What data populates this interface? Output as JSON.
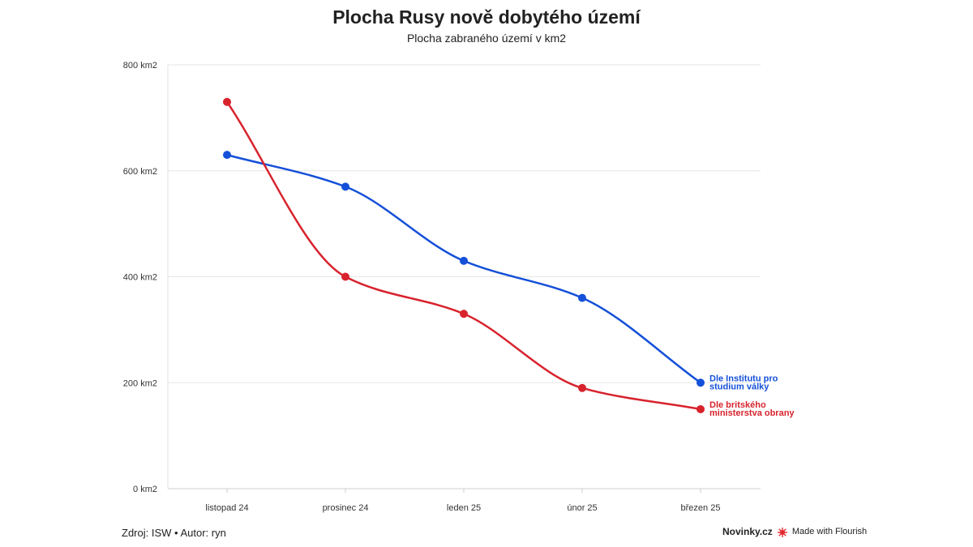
{
  "title": "Plocha Rusy nově dobytého území",
  "subtitle": "Plocha zabraného území v km2",
  "footer": {
    "source": "Zdroj: ISW • Autor: ryn",
    "brand": "Novinky.cz",
    "made_with": "Made with Flourish"
  },
  "colors": {
    "blue": "#1450d8",
    "red": "#d8232d",
    "grid": "#e6e6e6",
    "flourish": "#e3292f"
  },
  "icons": {
    "flourish": "flourish-logo-icon"
  },
  "chart_data": {
    "type": "line",
    "title": "Plocha Rusy nově dobytého území",
    "subtitle": "Plocha zabraného území v km2",
    "categories": [
      "listopad 24",
      "prosinec 24",
      "leden 25",
      "únor 25",
      "březen 25"
    ],
    "y_ticks": [
      "0 km2",
      "200 km2",
      "400 km2",
      "600 km2",
      "800 km2"
    ],
    "ylim": [
      0,
      800
    ],
    "grid": true,
    "legend": "inline labels at line ends",
    "series": [
      {
        "name": "Dle Institutu pro studium války",
        "label_lines": [
          "Dle Institutu pro",
          "studium války"
        ],
        "color": "#1450d8",
        "values": [
          630,
          570,
          430,
          360,
          200
        ]
      },
      {
        "name": "Dle britského ministerstva obrany",
        "label_lines": [
          "Dle britského",
          "ministerstva obrany"
        ],
        "color": "#d8232d",
        "values": [
          730,
          400,
          330,
          190,
          150
        ]
      }
    ]
  }
}
